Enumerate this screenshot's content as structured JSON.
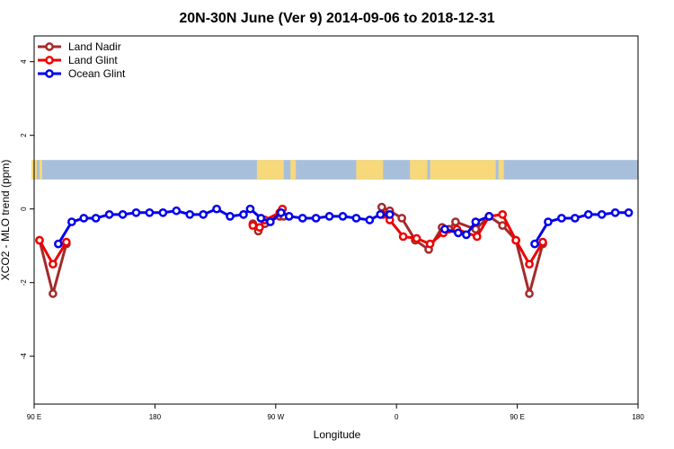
{
  "chart_data": {
    "type": "line",
    "title": "20N-30N June (Ver 9)   2014-09-06 to 2018-12-31",
    "xlabel": "Longitude",
    "ylabel": "XCO2 - MLO trend (ppm)",
    "xlim": [
      90,
      540
    ],
    "ylim": [
      -5.3,
      4.7
    ],
    "xticks": [
      {
        "v": 90,
        "label": "90 E"
      },
      {
        "v": 180,
        "label": "180"
      },
      {
        "v": 270,
        "label": "90 W"
      },
      {
        "v": 360,
        "label": "0"
      },
      {
        "v": 450,
        "label": "90 E"
      },
      {
        "v": 540,
        "label": "180"
      }
    ],
    "yticks": [
      {
        "v": -4,
        "label": "-4"
      },
      {
        "v": -2,
        "label": "-2"
      },
      {
        "v": 0,
        "label": "0"
      },
      {
        "v": 2,
        "label": "2"
      },
      {
        "v": 4,
        "label": "4"
      }
    ],
    "map_band": {
      "ymin": 0.8,
      "ymax": 1.33,
      "ocean_color": "#a8bfdc",
      "land_color": "#f7d87a"
    },
    "legend": "top-left",
    "series": [
      {
        "name": "Land Nadir",
        "color": "#a52a2a",
        "segments": [
          [
            [
              94,
              -0.85
            ],
            [
              104,
              -2.3
            ],
            [
              114,
              -0.95
            ]
          ],
          [
            [
              253,
              -0.4
            ],
            [
              257,
              -0.6
            ],
            [
              262,
              -0.4
            ],
            [
              273,
              -0.2
            ],
            [
              276,
              -0.2
            ]
          ],
          [
            [
              349,
              0.05
            ],
            [
              355,
              -0.05
            ],
            [
              364,
              -0.25
            ],
            [
              374,
              -0.85
            ],
            [
              384,
              -1.1
            ],
            [
              394,
              -0.5
            ],
            [
              399,
              -0.55
            ],
            [
              404,
              -0.35
            ],
            [
              419,
              -0.55
            ],
            [
              429,
              -0.2
            ],
            [
              439,
              -0.45
            ],
            [
              449,
              -0.85
            ],
            [
              459,
              -2.3
            ],
            [
              469,
              -0.95
            ]
          ]
        ]
      },
      {
        "name": "Land Glint",
        "color": "#ee0000",
        "segments": [
          [
            [
              94,
              -0.85
            ],
            [
              104,
              -1.5
            ],
            [
              114,
              -0.9
            ]
          ],
          [
            [
              253,
              -0.45
            ],
            [
              258,
              -0.5
            ],
            [
              262,
              -0.3
            ],
            [
              273,
              -0.1
            ],
            [
              275,
              0.0
            ]
          ],
          [
            [
              350,
              -0.15
            ],
            [
              355,
              -0.3
            ],
            [
              365,
              -0.75
            ],
            [
              375,
              -0.8
            ],
            [
              385,
              -0.95
            ],
            [
              395,
              -0.65
            ],
            [
              405,
              -0.55
            ],
            [
              420,
              -0.75
            ],
            [
              429,
              -0.2
            ],
            [
              439,
              -0.15
            ],
            [
              449,
              -0.85
            ],
            [
              459,
              -1.5
            ],
            [
              469,
              -0.9
            ]
          ]
        ]
      },
      {
        "name": "Ocean Glint",
        "color": "#0000ee",
        "segments": [
          [
            [
              108,
              -0.95
            ],
            [
              118,
              -0.35
            ],
            [
              127,
              -0.25
            ],
            [
              136,
              -0.25
            ],
            [
              146,
              -0.15
            ],
            [
              156,
              -0.15
            ],
            [
              166,
              -0.1
            ],
            [
              176,
              -0.1
            ],
            [
              186,
              -0.1
            ],
            [
              196,
              -0.05
            ],
            [
              206,
              -0.15
            ],
            [
              216,
              -0.15
            ],
            [
              226,
              0.0
            ],
            [
              236,
              -0.2
            ],
            [
              246,
              -0.15
            ],
            [
              251,
              0.0
            ],
            [
              259,
              -0.25
            ],
            [
              266,
              -0.35
            ],
            [
              274,
              -0.1
            ],
            [
              280,
              -0.2
            ],
            [
              290,
              -0.25
            ],
            [
              300,
              -0.25
            ],
            [
              310,
              -0.2
            ],
            [
              320,
              -0.2
            ],
            [
              330,
              -0.25
            ],
            [
              340,
              -0.3
            ],
            [
              348,
              -0.15
            ],
            [
              355,
              -0.15
            ]
          ],
          [
            [
              396,
              -0.55
            ],
            [
              406,
              -0.65
            ],
            [
              412,
              -0.7
            ],
            [
              419,
              -0.35
            ],
            [
              429,
              -0.2
            ]
          ],
          [
            [
              463,
              -0.95
            ],
            [
              473,
              -0.35
            ],
            [
              483,
              -0.25
            ],
            [
              493,
              -0.25
            ],
            [
              503,
              -0.15
            ],
            [
              513,
              -0.15
            ],
            [
              523,
              -0.1
            ],
            [
              533,
              -0.1
            ]
          ]
        ]
      }
    ]
  }
}
